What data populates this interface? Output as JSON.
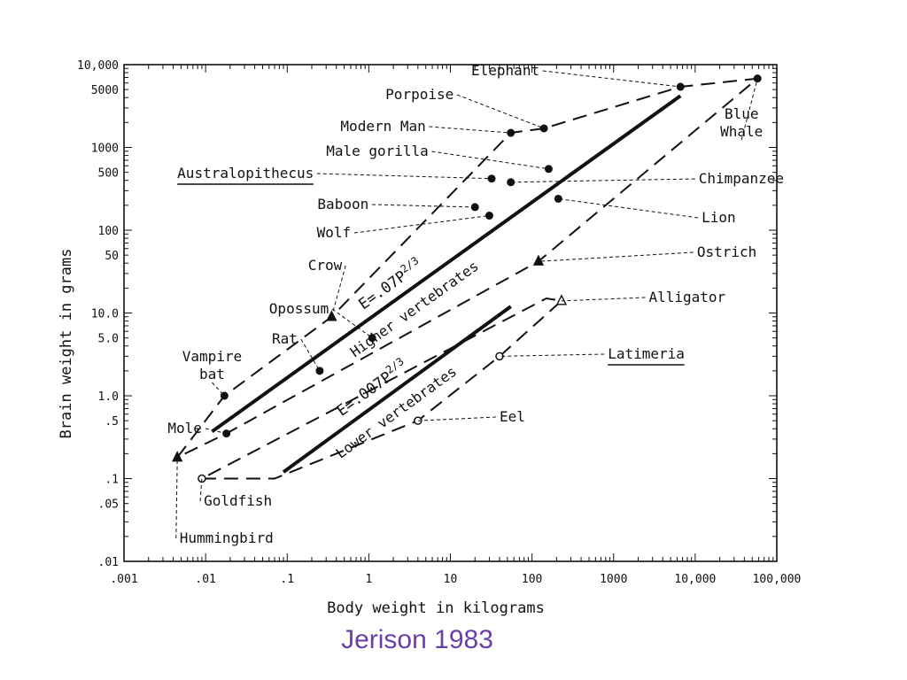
{
  "caption": "Jerison 1983",
  "colors": {
    "ink": "#111111",
    "caption": "#6a3fa8"
  },
  "chart_data": {
    "type": "scatter",
    "title": "",
    "xlabel": "Body weight in kilograms",
    "ylabel": "Brain weight in grams",
    "x_scale": "log",
    "y_scale": "log",
    "xlim": [
      0.001,
      100000
    ],
    "ylim": [
      0.01,
      10000
    ],
    "x_ticks": [
      {
        "v": 0.001,
        "label": ".001"
      },
      {
        "v": 0.01,
        "label": ".01"
      },
      {
        "v": 0.1,
        "label": ".1"
      },
      {
        "v": 1,
        "label": "1"
      },
      {
        "v": 10,
        "label": "10"
      },
      {
        "v": 100,
        "label": "100"
      },
      {
        "v": 1000,
        "label": "1000"
      },
      {
        "v": 10000,
        "label": "10,000"
      },
      {
        "v": 100000,
        "label": "100,000"
      }
    ],
    "y_ticks": [
      {
        "v": 10000,
        "label": "10,000"
      },
      {
        "v": 5000,
        "label": "5000"
      },
      {
        "v": 1000,
        "label": "1000"
      },
      {
        "v": 500,
        "label": "500"
      },
      {
        "v": 100,
        "label": "100"
      },
      {
        "v": 50,
        "label": "50"
      },
      {
        "v": 10,
        "label": "10.0"
      },
      {
        "v": 5,
        "label": "5.0"
      },
      {
        "v": 1,
        "label": "1.0"
      },
      {
        "v": 0.5,
        "label": ".5"
      },
      {
        "v": 0.1,
        "label": ".1"
      },
      {
        "v": 0.05,
        "label": ".05"
      },
      {
        "v": 0.01,
        "label": ".01"
      }
    ],
    "points": [
      {
        "name": "Elephant",
        "x": 6600,
        "y": 5400,
        "marker": "dot",
        "label_at": [
          18,
          85
        ],
        "anchor": "start"
      },
      {
        "name": "Porpoise",
        "x": 140,
        "y": 1700,
        "marker": "dot",
        "label_at": [
          1.6,
          112
        ],
        "anchor": "start"
      },
      {
        "name": "Modern Man",
        "x": 55,
        "y": 1500,
        "marker": "dot",
        "label_at": [
          0.45,
          148
        ],
        "anchor": "start"
      },
      {
        "name": "Male gorilla",
        "x": 160,
        "y": 550,
        "marker": "dot",
        "label_at": [
          0.3,
          176
        ],
        "anchor": "start"
      },
      {
        "name": "Australopithecus",
        "x": 32,
        "y": 420,
        "marker": "dot",
        "label_at": [
          0.0045,
          201
        ],
        "anchor": "start"
      },
      {
        "name": "Chimpanzee",
        "x": 55,
        "y": 380,
        "marker": "dot",
        "label_at": [
          11000,
          207
        ],
        "anchor": "start"
      },
      {
        "name": "Lion",
        "x": 210,
        "y": 240,
        "marker": "dot",
        "label_at": [
          12000,
          251
        ],
        "anchor": "start"
      },
      {
        "name": "Baboon",
        "x": 20,
        "y": 190,
        "marker": "dot",
        "label_at": [
          0.235,
          236
        ],
        "anchor": "start"
      },
      {
        "name": "Wolf",
        "x": 30,
        "y": 150,
        "marker": "dot",
        "label_at": [
          0.23,
          268
        ],
        "anchor": "start"
      },
      {
        "name": "Crow",
        "x": 0.35,
        "y": 9,
        "marker": "triangle",
        "label_at": [
          0.18,
          305
        ],
        "anchor": "start"
      },
      {
        "name": "Ostrich",
        "x": 120,
        "y": 42,
        "marker": "triangle",
        "label_at": [
          10500,
          290
        ],
        "anchor": "start"
      },
      {
        "name": "Opossum",
        "x": 1.1,
        "y": 5,
        "marker": "dot",
        "label_at": [
          0.06,
          354
        ],
        "anchor": "start"
      },
      {
        "name": "Rat",
        "x": 0.25,
        "y": 2,
        "marker": "dot",
        "label_at": [
          0.065,
          388
        ],
        "anchor": "start"
      },
      {
        "name": "Vampire bat",
        "x": 0.017,
        "y": 1,
        "marker": "dot",
        "label_at": [
          0.012,
          426
        ],
        "anchor": "middle"
      },
      {
        "name": "Mole",
        "x": 0.018,
        "y": 0.35,
        "marker": "dot",
        "label_at": [
          0.009,
          489
        ],
        "anchor": "end"
      },
      {
        "name": "Hummingbird",
        "x": 0.0045,
        "y": 0.18,
        "marker": "triangle",
        "label_at": [
          0.0048,
          613
        ],
        "anchor": "start"
      },
      {
        "name": "Goldfish",
        "x": 0.009,
        "y": 0.1,
        "marker": "circle",
        "label_at": [
          0.0095,
          571
        ],
        "anchor": "start"
      },
      {
        "name": "Alligator",
        "x": 230,
        "y": 14,
        "marker": "open-triangle",
        "label_at": [
          2700,
          341
        ],
        "anchor": "start"
      },
      {
        "name": "Latimeria",
        "x": 40,
        "y": 3,
        "marker": "circle",
        "label_at": [
          850,
          405
        ],
        "anchor": "start"
      },
      {
        "name": "Eel",
        "x": 4,
        "y": 0.5,
        "marker": "circle",
        "label_at": [
          40,
          476
        ],
        "anchor": "start"
      },
      {
        "name": "Blue Whale",
        "x": 58000,
        "y": 6800,
        "marker": "dot",
        "label_at": [
          37000,
          152
        ],
        "anchor": "middle"
      }
    ],
    "regression_lines": [
      {
        "name": "Higher vertebrates",
        "equation": "E=.07P",
        "exponent": "2/3",
        "x": [
          0.012,
          6600
        ],
        "y": [
          0.37,
          4200
        ]
      },
      {
        "name": "Lower vertebrates",
        "equation": "E=.007P",
        "exponent": "2/3",
        "x": [
          0.09,
          55
        ],
        "y": [
          0.12,
          12
        ]
      }
    ],
    "polygons": [
      {
        "name": "Higher vertebrates envelope",
        "points": [
          [
            0.0045,
            0.18
          ],
          [
            0.017,
            1
          ],
          [
            0.35,
            9
          ],
          [
            55,
            1500
          ],
          [
            140,
            1700
          ],
          [
            6600,
            5400
          ],
          [
            58000,
            6800
          ],
          [
            120,
            42
          ],
          [
            0.018,
            0.35
          ]
        ]
      },
      {
        "name": "Lower vertebrates envelope",
        "points": [
          [
            0.009,
            0.1
          ],
          [
            0.07,
            0.1
          ],
          [
            4,
            0.5
          ],
          [
            40,
            3
          ],
          [
            230,
            14
          ],
          [
            150,
            15
          ],
          [
            0.009,
            0.1
          ]
        ]
      }
    ]
  }
}
